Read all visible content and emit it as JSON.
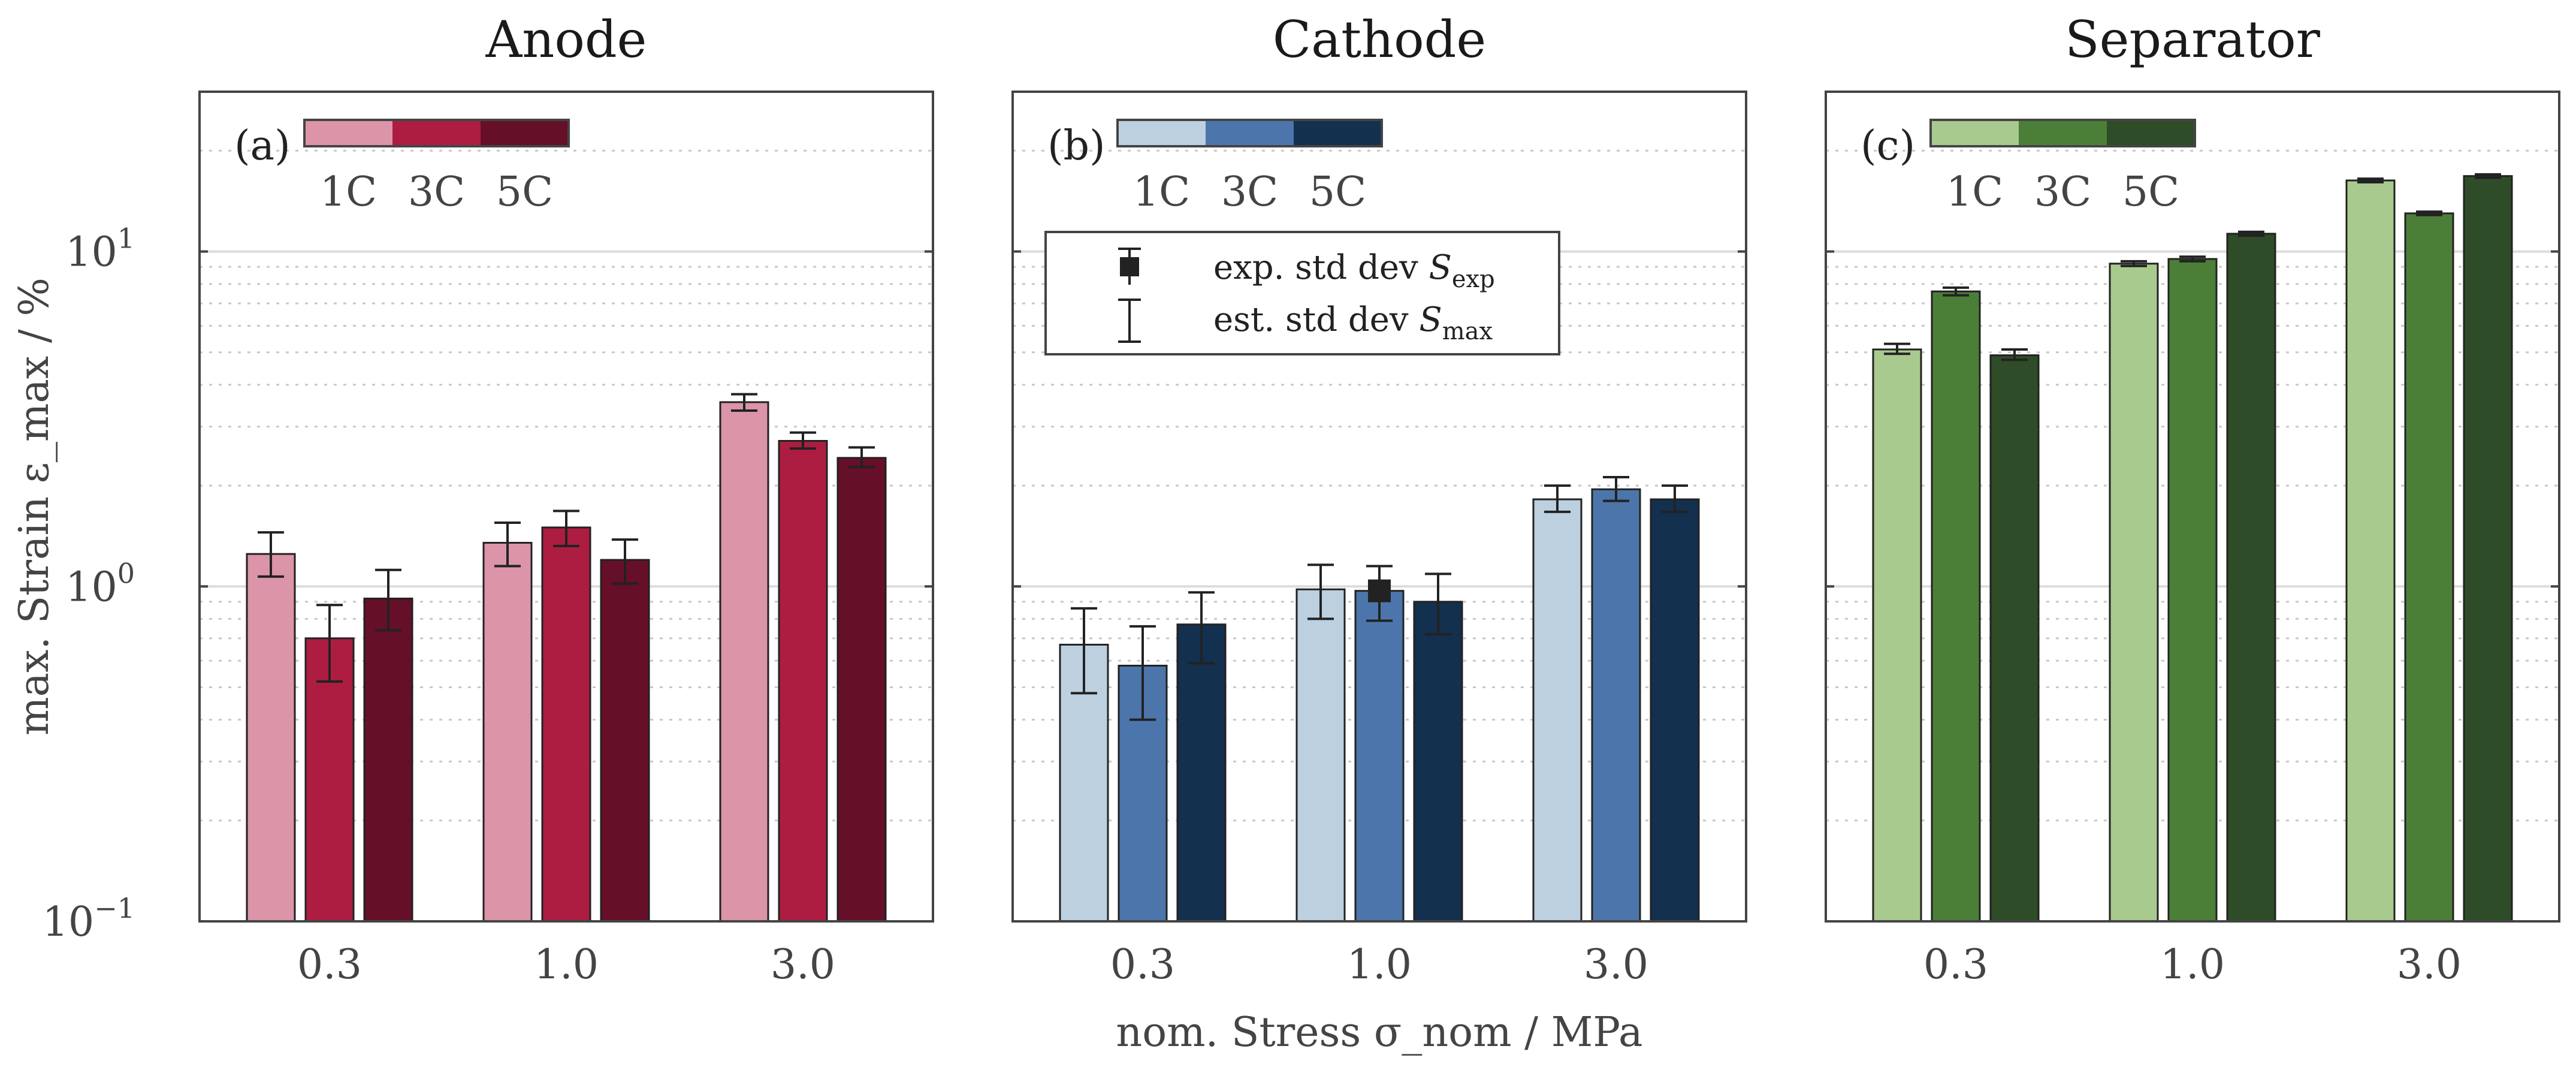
{
  "chart_data": {
    "type": "bar",
    "yscale": "log",
    "ylim": [
      0.1,
      30
    ],
    "ylabel": "max. Strain ε_max / %",
    "xlabel": "nom. Stress σ_nom / MPa",
    "ytick_labels": [
      {
        "value": 0.1,
        "base": "10",
        "exp": "−1"
      },
      {
        "value": 1,
        "base": "10",
        "exp": "0"
      },
      {
        "value": 10,
        "base": "10",
        "exp": "1"
      }
    ],
    "categories": [
      "0.3",
      "1.0",
      "3.0"
    ],
    "rates": [
      "1C",
      "3C",
      "5C"
    ],
    "legend": {
      "exp_label": "exp. std dev ",
      "exp_symbol": "S",
      "exp_sub": "exp",
      "est_label": "est. std dev ",
      "est_symbol": "S",
      "est_sub": "max"
    },
    "panels": [
      {
        "title": "Anode",
        "label": "(a)",
        "colors": [
          "#dc94a8",
          "#ad1d41",
          "#660f29"
        ],
        "series": [
          {
            "name": "1C",
            "values": [
              1.25,
              1.35,
              3.55
            ],
            "err_low": [
              1.07,
              1.15,
              3.35
            ],
            "err_high": [
              1.45,
              1.55,
              3.75
            ]
          },
          {
            "name": "3C",
            "values": [
              0.7,
              1.5,
              2.72
            ],
            "err_low": [
              0.52,
              1.32,
              2.58
            ],
            "err_high": [
              0.88,
              1.68,
              2.88
            ]
          },
          {
            "name": "5C",
            "values": [
              0.92,
              1.2,
              2.42
            ],
            "err_low": [
              0.74,
              1.02,
              2.27
            ],
            "err_high": [
              1.12,
              1.38,
              2.6
            ]
          }
        ],
        "exp_markers": []
      },
      {
        "title": "Cathode",
        "label": "(b)",
        "colors": [
          "#bdd0e0",
          "#4c76ab",
          "#13304f"
        ],
        "series": [
          {
            "name": "1C",
            "values": [
              0.67,
              0.98,
              1.82
            ],
            "err_low": [
              0.48,
              0.8,
              1.67
            ],
            "err_high": [
              0.86,
              1.16,
              2.0
            ]
          },
          {
            "name": "3C",
            "values": [
              0.58,
              0.97,
              1.95
            ],
            "err_low": [
              0.4,
              0.79,
              1.8
            ],
            "err_high": [
              0.76,
              1.15,
              2.12
            ]
          },
          {
            "name": "5C",
            "values": [
              0.77,
              0.9,
              1.82
            ],
            "err_low": [
              0.59,
              0.72,
              1.67
            ],
            "err_high": [
              0.96,
              1.09,
              2.0
            ]
          }
        ],
        "exp_markers": [
          {
            "category": "1.0",
            "series": "3C",
            "value": 0.97
          }
        ]
      },
      {
        "title": "Separator",
        "label": "(c)",
        "colors": [
          "#a8ca8f",
          "#4b7f38",
          "#2f4c28"
        ],
        "series": [
          {
            "name": "1C",
            "values": [
              5.1,
              9.2,
              16.3
            ],
            "err_low": [
              4.95,
              9.05,
              16.1
            ],
            "err_high": [
              5.3,
              9.35,
              16.5
            ]
          },
          {
            "name": "3C",
            "values": [
              7.6,
              9.5,
              13.0
            ],
            "err_low": [
              7.4,
              9.35,
              12.85
            ],
            "err_high": [
              7.8,
              9.65,
              13.15
            ]
          },
          {
            "name": "5C",
            "values": [
              4.9,
              11.3,
              16.8
            ],
            "err_low": [
              4.75,
              11.15,
              16.6
            ],
            "err_high": [
              5.1,
              11.45,
              17.0
            ]
          }
        ],
        "exp_markers": []
      }
    ]
  }
}
